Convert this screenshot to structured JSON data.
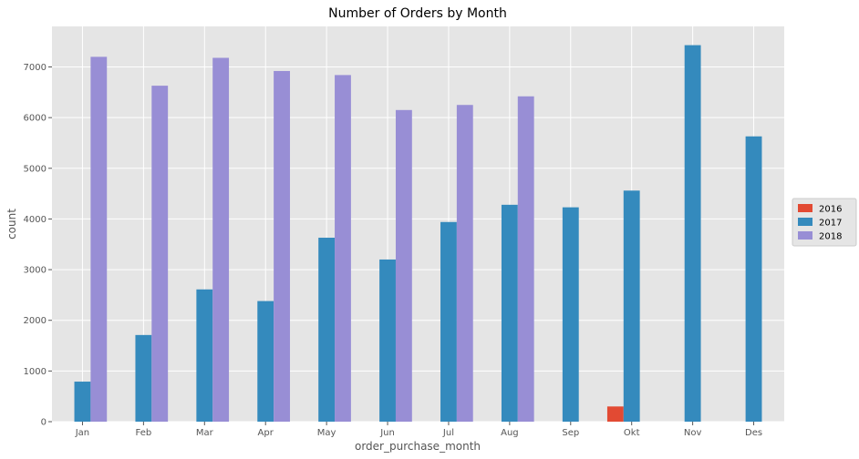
{
  "chart_data": {
    "type": "bar",
    "title": "Number of Orders by Month",
    "xlabel": "order_purchase_month",
    "ylabel": "count",
    "ylim": [
      0,
      7800
    ],
    "yticks": [
      0,
      1000,
      2000,
      3000,
      4000,
      5000,
      6000,
      7000
    ],
    "grid": true,
    "legend_position": "right",
    "categories": [
      "Jan",
      "Feb",
      "Mar",
      "Apr",
      "May",
      "Jun",
      "Jul",
      "Aug",
      "Sep",
      "Okt",
      "Nov",
      "Des"
    ],
    "series": [
      {
        "name": "2016",
        "color": "#E24A33",
        "values": [
          null,
          null,
          null,
          null,
          null,
          null,
          null,
          null,
          null,
          300,
          null,
          null
        ]
      },
      {
        "name": "2017",
        "color": "#348ABD",
        "values": [
          790,
          1710,
          2610,
          2380,
          3630,
          3200,
          3940,
          4280,
          4230,
          4560,
          7430,
          5630
        ]
      },
      {
        "name": "2018",
        "color": "#988ED5",
        "values": [
          7200,
          6630,
          7180,
          6920,
          6840,
          6150,
          6250,
          6420,
          null,
          null,
          null,
          null
        ]
      }
    ]
  }
}
